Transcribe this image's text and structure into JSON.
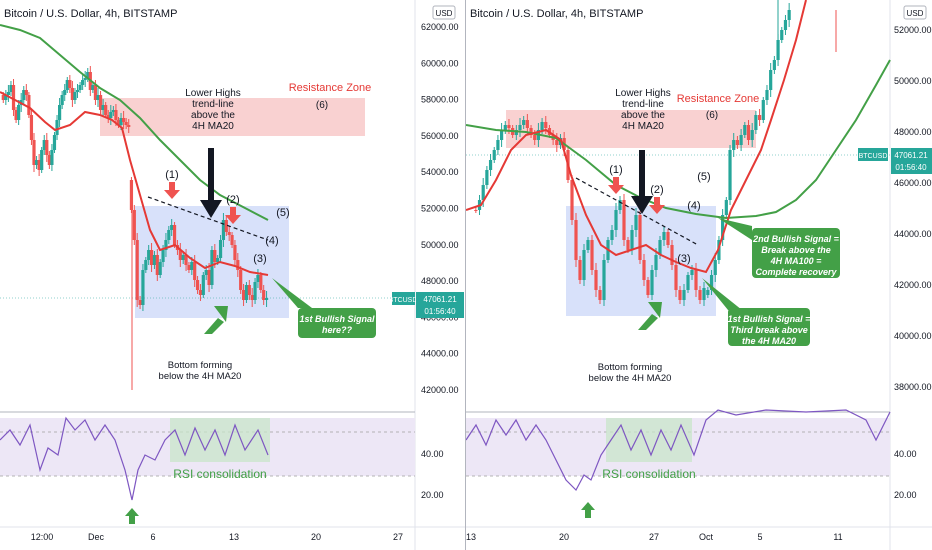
{
  "colors": {
    "candle_up": "#26a69a",
    "candle_down": "#ef5350",
    "ma20": "#e53935",
    "ma100": "#43a047",
    "resistance": "#f8c9c9",
    "bottom_box": "#c8d4f8",
    "rsi_line": "#7e57c2",
    "rsi_fill": "#ede7f6",
    "rsi_box": "#c8e6c9",
    "callout": "#43a047",
    "red_arrow": "#ef5350",
    "price_tag": "#26a69a"
  },
  "chart_data": [
    {
      "type": "candlestick",
      "title": "Bitcoin / U.S. Dollar, 4h, BITSTAMP",
      "currency": "USD",
      "y_ticks": [
        "62000.00",
        "60000.00",
        "58000.00",
        "56000.00",
        "54000.00",
        "52000.00",
        "50000.00",
        "48000.00",
        "46000.00",
        "44000.00",
        "42000.00"
      ],
      "ylim": [
        41000,
        63000
      ],
      "x_ticks": [
        "12:00",
        "Dec",
        "6",
        "13",
        "20",
        "27"
      ],
      "price_tag": {
        "label": "BTCUSD",
        "value": "47061.21",
        "time": "01:56:40"
      },
      "ma20": [
        [
          0,
          56800
        ],
        [
          10,
          56000
        ],
        [
          20,
          56300
        ],
        [
          28,
          55400
        ],
        [
          33,
          53200
        ],
        [
          40,
          51200
        ],
        [
          48,
          50000
        ],
        [
          55,
          49600
        ],
        [
          62,
          48800
        ],
        [
          70,
          48400
        ],
        [
          78,
          48000
        ],
        [
          90,
          47900
        ],
        [
          100,
          47600
        ],
        [
          110,
          47300
        ],
        [
          125,
          47200
        ]
      ],
      "ma100": [
        [
          0,
          60300
        ],
        [
          12,
          60100
        ],
        [
          22,
          59300
        ],
        [
          30,
          58300
        ],
        [
          38,
          57400
        ],
        [
          45,
          56700
        ],
        [
          52,
          55700
        ],
        [
          60,
          54500
        ],
        [
          66,
          53700
        ],
        [
          72,
          53000
        ],
        [
          80,
          52300
        ]
      ],
      "annotations": {
        "resistance_zone": "Resistance Zone",
        "six": "(6)",
        "lower_highs": [
          "Lower Highs",
          "trend-line",
          "above the",
          "4H MA20"
        ],
        "one": "(1)",
        "two": "(2)",
        "three": "(3)",
        "four": "(4)",
        "five": "(5)",
        "bottom": [
          "Bottom forming",
          "below the 4H MA20"
        ],
        "callout": [
          "1st Bullish Signal",
          "here??"
        ],
        "rsi_consolidation": "RSI consolidation"
      },
      "rsi_ticks": [
        "40.00",
        "20.00"
      ]
    },
    {
      "type": "candlestick",
      "title": "Bitcoin / U.S. Dollar, 4h, BITSTAMP",
      "currency": "USD",
      "y_ticks": [
        "52000.00",
        "50000.00",
        "48000.00",
        "46000.00",
        "44000.00",
        "42000.00",
        "40000.00",
        "38000.00"
      ],
      "ylim": [
        36500,
        53500
      ],
      "x_ticks": [
        "13",
        "20",
        "27",
        "Oct",
        "5",
        "11"
      ],
      "price_tag": {
        "label": "BTCUSD",
        "value": "47061.21",
        "time": "01:56:40"
      },
      "annotations": {
        "resistance_zone": "Resistance Zone",
        "six": "(6)",
        "lower_highs": [
          "Lower Highs",
          "trend-line",
          "above the",
          "4H MA20"
        ],
        "one": "(1)",
        "two": "(2)",
        "three": "(3)",
        "four": "(4)",
        "five": "(5)",
        "bottom": [
          "Bottom forming",
          "below the 4H MA20"
        ],
        "callout1": [
          "1st Bullish Signal =",
          "Third break above",
          "the 4H MA20"
        ],
        "callout2": [
          "2nd Bullish Signal =",
          "Break above the",
          "4H MA100 =",
          "Complete recovery"
        ],
        "rsi_consolidation": "RSI consolidation"
      },
      "rsi_ticks": [
        "40.00",
        "20.00"
      ]
    }
  ]
}
